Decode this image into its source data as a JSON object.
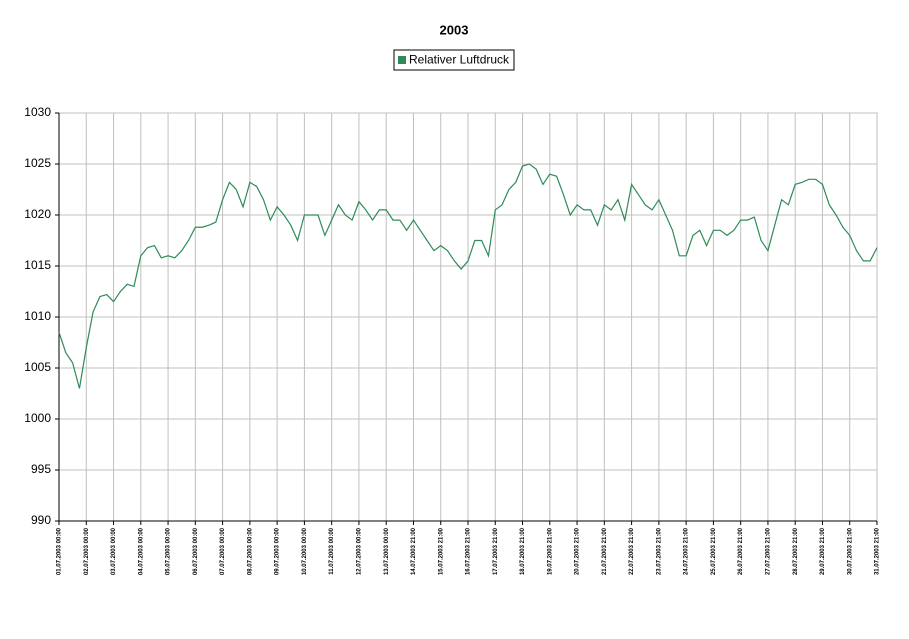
{
  "chart_data": {
    "type": "line",
    "title": "2003",
    "categories": [
      "01.07.2003 00:00",
      null,
      null,
      null,
      "02.07.2003 00:00",
      null,
      null,
      null,
      "03.07.2003 00:00",
      null,
      null,
      null,
      "04.07.2003 00:00",
      null,
      null,
      null,
      "05.07.2003 00:00",
      null,
      null,
      null,
      "06.07.2003 00:00",
      null,
      null,
      null,
      "07.07.2003 00:00",
      null,
      null,
      null,
      "08.07.2003 00:00",
      null,
      null,
      null,
      "09.07.2003 00:00",
      null,
      null,
      null,
      "10.07.2003 00:00",
      null,
      null,
      null,
      "11.07.2003 00:00",
      null,
      null,
      null,
      "12.07.2003 00:00",
      null,
      null,
      null,
      "13.07.2003 00:00",
      null,
      null,
      null,
      "14.07.2003 21:00",
      null,
      null,
      null,
      "15.07.2003 21:00",
      null,
      null,
      null,
      "16.07.2003 21:00",
      null,
      null,
      null,
      "17.07.2003 21:00",
      null,
      null,
      null,
      "18.07.2003 21:00",
      null,
      null,
      null,
      "19.07.2003 21:00",
      null,
      null,
      null,
      "20.07.2003 21:00",
      null,
      null,
      null,
      "21.07.2003 21:00",
      null,
      null,
      null,
      "22.07.2003 21:00",
      null,
      null,
      null,
      "23.07.2003 21:00",
      null,
      null,
      null,
      "24.07.2003 21:00",
      null,
      null,
      null,
      "25.07.2003 21:00",
      null,
      null,
      null,
      "26.07.2003 21:00",
      null,
      null,
      null,
      "27.07.2003 21:00",
      null,
      null,
      null,
      "28.07.2003 21:00",
      null,
      null,
      null,
      "29.07.2003 21:00",
      null,
      null,
      null,
      "30.07.2003 21:00",
      null,
      null,
      null,
      "31.07.2003 21:00"
    ],
    "series": [
      {
        "name": "Relativer Luftdruck",
        "color": "#2e8b57",
        "values": [
          1008.5,
          1006.5,
          1005.5,
          1003,
          1007,
          1010.5,
          1012,
          1012.2,
          1011.5,
          1012.5,
          1013.2,
          1013,
          1016,
          1016.8,
          1017,
          1015.8,
          1016,
          1015.8,
          1016.5,
          1017.5,
          1018.8,
          1018.8,
          1019,
          1019.3,
          1021.5,
          1023.2,
          1022.5,
          1020.8,
          1023.2,
          1022.8,
          1021.5,
          1019.5,
          1020.8,
          1020,
          1019,
          1017.5,
          1020,
          1020,
          1020,
          1018,
          1019.5,
          1021,
          1020,
          1019.5,
          1021.3,
          1020.5,
          1019.5,
          1020.5,
          1020.5,
          1019.5,
          1019.5,
          1018.5,
          1019.5,
          1018.5,
          1017.5,
          1016.5,
          1017,
          1016.5,
          1015.5,
          1014.7,
          1015.5,
          1017.5,
          1017.5,
          1016,
          1020.5,
          1021,
          1022.5,
          1023.2,
          1024.8,
          1025,
          1024.5,
          1023,
          1024,
          1023.8,
          1022,
          1020,
          1021,
          1020.5,
          1020.5,
          1019,
          1021,
          1020.5,
          1021.5,
          1019.5,
          1023,
          1022,
          1021,
          1020.5,
          1021.5,
          1020,
          1018.5,
          1016,
          1016,
          1018,
          1018.5,
          1017,
          1018.5,
          1018.5,
          1018,
          1018.5,
          1019.5,
          1019.5,
          1019.8,
          1017.5,
          1016.5,
          1019,
          1021.5,
          1021,
          1023,
          1023.2,
          1023.5,
          1023.5,
          1023,
          1021,
          1020,
          1018.8,
          1018,
          1016.5,
          1015.5,
          1015.5,
          1016.8
        ]
      }
    ],
    "ylim": [
      990,
      1030
    ],
    "yticks": [
      990,
      995,
      1000,
      1005,
      1010,
      1015,
      1020,
      1025,
      1030
    ],
    "grid": true
  }
}
